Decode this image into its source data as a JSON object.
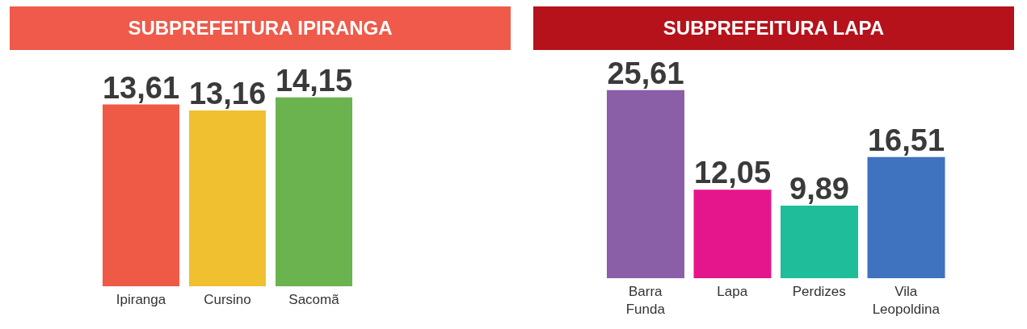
{
  "chart_data": [
    {
      "type": "bar",
      "title": "SUBPREFEITURA IPIRANGA",
      "categories": [
        "Ipiranga",
        "Cursino",
        "Sacomã"
      ],
      "values": [
        13.61,
        13.16,
        14.15
      ],
      "value_labels": [
        "13,61",
        "13,16",
        "14,15"
      ],
      "colors": [
        "#ef5a47",
        "#f0c030",
        "#6ab34f"
      ],
      "tick_labels": "x",
      "grid": false,
      "legend": false
    },
    {
      "type": "bar",
      "title": "SUBPREFEITURA LAPA",
      "categories": [
        "Barra Funda",
        "Lapa",
        "Perdizes",
        "Vila Leopoldina"
      ],
      "values": [
        25.61,
        12.05,
        9.89,
        16.51
      ],
      "value_labels": [
        "25,61",
        "12,05",
        "9,89",
        "16,51"
      ],
      "colors": [
        "#8b5ea8",
        "#e5168c",
        "#1fbd9a",
        "#3f72bf"
      ],
      "tick_labels": "x",
      "grid": false,
      "legend": false
    }
  ]
}
